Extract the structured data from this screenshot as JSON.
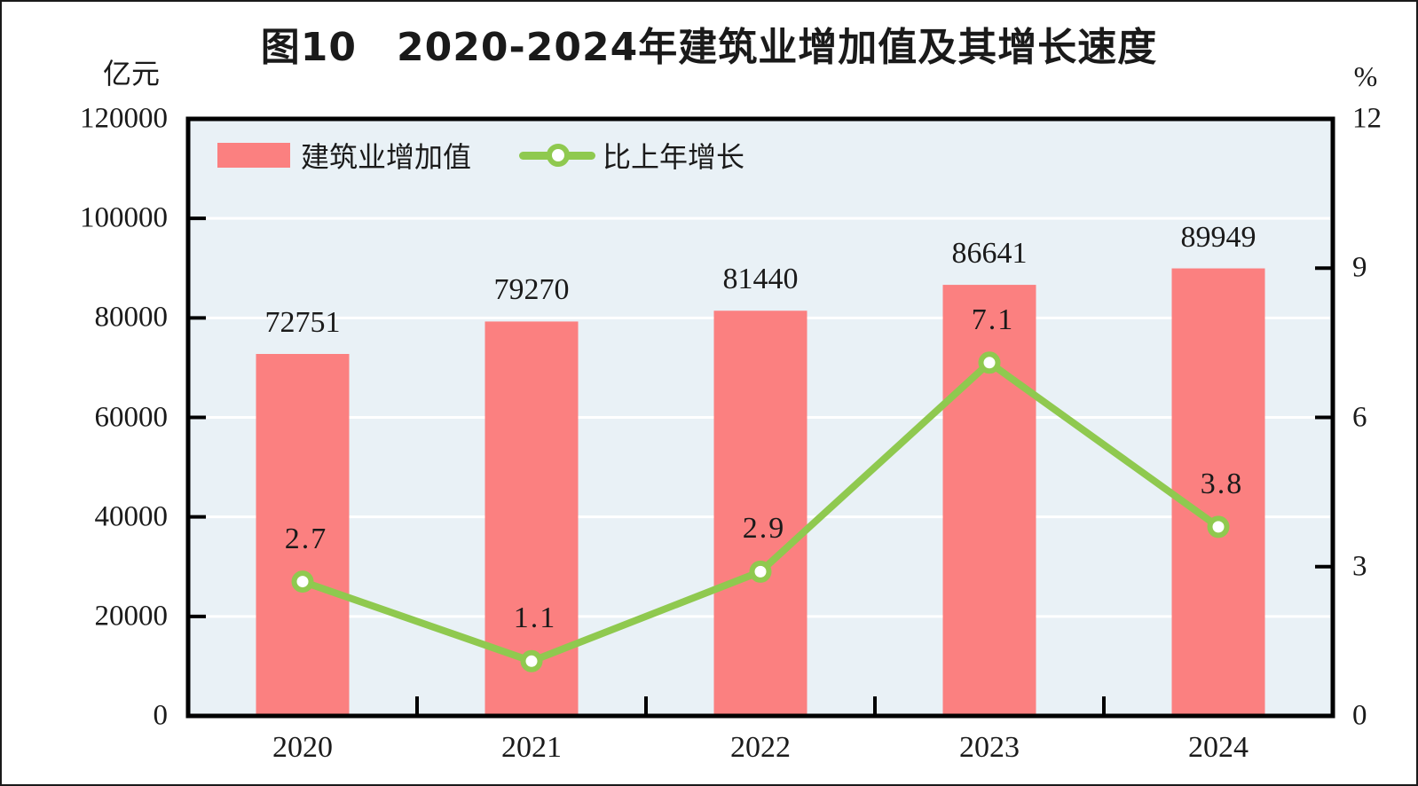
{
  "title": "图10　2020-2024年建筑业增加值及其增长速度",
  "left_axis": {
    "unit": "亿元",
    "min": 0,
    "max": 120000,
    "ticks": [
      0,
      20000,
      40000,
      60000,
      80000,
      100000,
      120000
    ]
  },
  "right_axis": {
    "unit": "%",
    "min": 0,
    "max": 12,
    "ticks": [
      0,
      3,
      6,
      9,
      12
    ]
  },
  "legend": {
    "bar_label": "建筑业增加值",
    "line_label": "比上年增长"
  },
  "colors": {
    "bar": "#FB8080",
    "line": "#8FC94F",
    "plot_background": "#E9F1F6",
    "gridline": "#FFFFFF",
    "axis": "#000000",
    "text": "#1A1A1A"
  },
  "chart_data": {
    "type": "bar",
    "subtype": "bar-line-combo",
    "title": "图10 2020-2024年建筑业增加值及其增长速度",
    "categories": [
      "2020",
      "2021",
      "2022",
      "2023",
      "2024"
    ],
    "series": [
      {
        "name": "建筑业增加值",
        "type": "bar",
        "axis": "left",
        "unit": "亿元",
        "values": [
          72751,
          79270,
          81440,
          86641,
          89949
        ]
      },
      {
        "name": "比上年增长",
        "type": "line",
        "axis": "right",
        "unit": "%",
        "values": [
          2.7,
          1.1,
          2.9,
          7.1,
          3.8
        ]
      }
    ],
    "ylabel_left": "亿元",
    "ylabel_right": "%",
    "ylim_left": [
      0,
      120000
    ],
    "ylim_right": [
      0,
      12
    ],
    "grid": true,
    "legend_position": "top-left-inside",
    "data_labels": true
  }
}
